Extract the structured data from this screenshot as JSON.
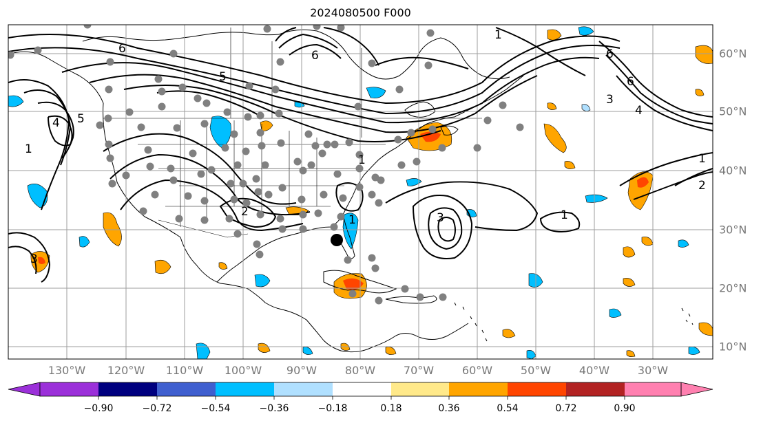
{
  "title": "2024080500 F000",
  "lon_labels": [
    "130°W",
    "120°W",
    "110°W",
    "100°W",
    "90°W",
    "80°W",
    "70°W",
    "60°W",
    "50°W",
    "40°W",
    "30°W"
  ],
  "lat_labels": [
    "60°N",
    "50°N",
    "40°N",
    "30°N",
    "20°N",
    "10°N"
  ],
  "colorbar": {
    "ticks": [
      "−0.90",
      "−0.72",
      "−0.54",
      "−0.36",
      "−0.18",
      "0.18",
      "0.36",
      "0.54",
      "0.72",
      "0.90"
    ],
    "colors": [
      "#9b30d9",
      "#00007f",
      "#3f5fcf",
      "#00bfff",
      "#b0e0ff",
      "#ffffff",
      "#ffe98a",
      "#ffa500",
      "#ff4500",
      "#b22222",
      "#ff80b0"
    ]
  },
  "contour_labels": [
    "1",
    "2",
    "3",
    "4",
    "5",
    "6"
  ],
  "colors": {
    "land_marker": "#808080",
    "highlight_marker": "#000000",
    "contour": "#000000",
    "grid": "#9e9e9e"
  }
}
